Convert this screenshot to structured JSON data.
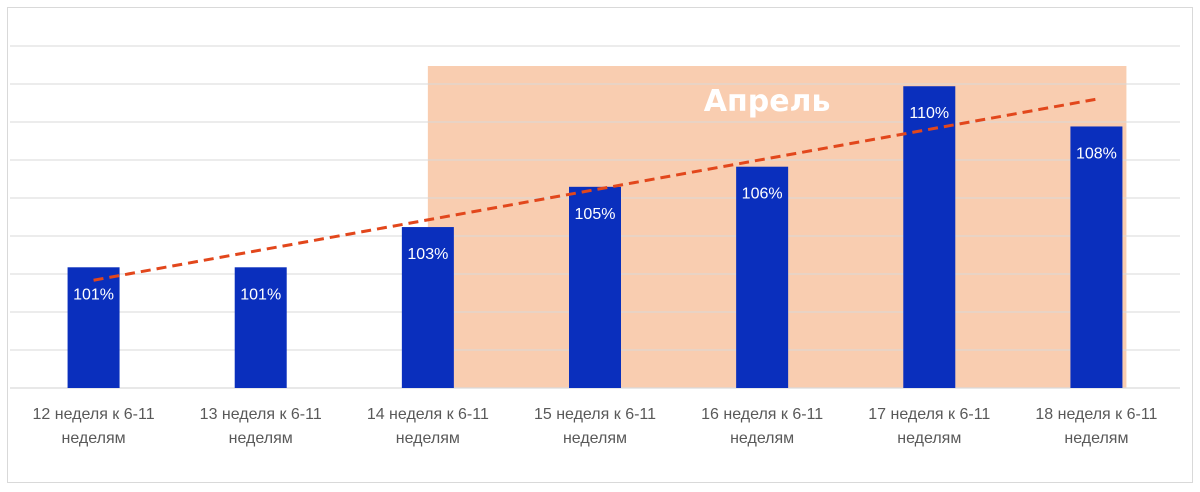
{
  "chart_data": {
    "type": "bar",
    "title": "",
    "xlabel": "",
    "ylabel": "",
    "categories": [
      [
        "12 неделя к 6-11",
        "неделям"
      ],
      [
        "13 неделя к 6-11",
        "неделям"
      ],
      [
        "14 неделя к 6-11",
        "неделям"
      ],
      [
        "15 неделя к 6-11",
        "неделям"
      ],
      [
        "16 неделя к 6-11",
        "неделям"
      ],
      [
        "17 неделя к 6-11",
        "неделям"
      ],
      [
        "18 неделя к 6-11",
        "неделям"
      ]
    ],
    "values": [
      101,
      101,
      103,
      105,
      106,
      110,
      108
    ],
    "data_labels": [
      "101%",
      "101%",
      "103%",
      "105%",
      "106%",
      "110%",
      "108%"
    ],
    "ylim": [
      95,
      112
    ],
    "grid": true,
    "trendline": {
      "type": "linear",
      "style": "dashed",
      "color": "#e2471c"
    },
    "highlight_region": {
      "label": "Апрель",
      "from_category": 2,
      "to_category": 6,
      "color": "#f9cdb0"
    },
    "colors": {
      "bar": "#0a2fbd",
      "grid": "#d9d9d9",
      "tick_text": "#595959"
    }
  }
}
